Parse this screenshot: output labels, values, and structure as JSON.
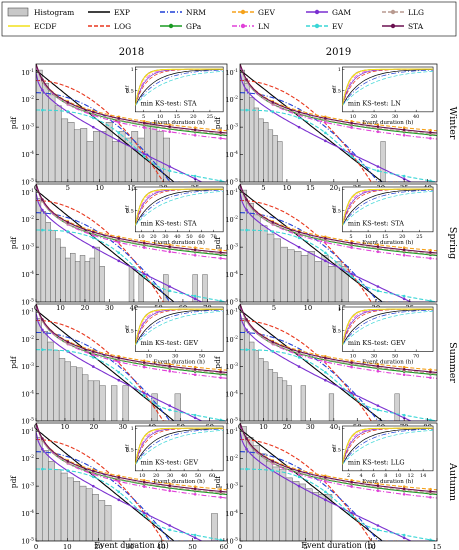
{
  "legend": {
    "entries": [
      {
        "label": "Histogram",
        "color": "#c8c8c8",
        "style": "bar"
      },
      {
        "label": "ECDF",
        "color": "#f2e01a",
        "style": "solid"
      },
      {
        "label": "EXP",
        "color": "#000000",
        "style": "solid"
      },
      {
        "label": "LOG",
        "color": "#e8371e",
        "style": "dashed"
      },
      {
        "label": "NRM",
        "color": "#1f3fd6",
        "style": "dashdot"
      },
      {
        "label": "GPa",
        "color": "#1a9a22",
        "style": "marker"
      },
      {
        "label": "GEV",
        "color": "#f5a21b",
        "style": "dashed-marker"
      },
      {
        "label": "LN",
        "color": "#e040d8",
        "style": "dashdot-marker"
      },
      {
        "label": "GAM",
        "color": "#7a2fd0",
        "style": "solid-marker"
      },
      {
        "label": "EV",
        "color": "#3ad6d6",
        "style": "dashed-marker"
      },
      {
        "label": "LLG",
        "color": "#b89a90",
        "style": "dashed-marker"
      },
      {
        "label": "STA",
        "color": "#6b1050",
        "style": "solid-marker"
      }
    ]
  },
  "columns": [
    "2018",
    "2019"
  ],
  "rows": [
    "Winter",
    "Spring",
    "Summer",
    "Autumn"
  ],
  "y_label": "pdf",
  "x_label": "Event duration (h)",
  "inset_y_label": "cdf",
  "inset_x_label": "Event duration (h)",
  "y_ticks": [
    "10^-1",
    "10^-2",
    "10^-3",
    "10^-4",
    "10^-5"
  ],
  "chart_data": [
    {
      "type": "line",
      "row": "Winter",
      "column": "2018",
      "x_max": 30,
      "x_ticks": [
        0,
        5,
        10,
        15,
        20,
        25
      ],
      "ylim": [
        1e-05,
        0.2
      ],
      "y_scale": "log",
      "ks_label": "min KS-test: STA",
      "inset_x_ticks": [
        5,
        10,
        15,
        20,
        25
      ],
      "histogram": [
        [
          0,
          1,
          0.12
        ],
        [
          1,
          2,
          0.04
        ],
        [
          2,
          3,
          0.015
        ],
        [
          3,
          4,
          0.006
        ],
        [
          4,
          5,
          0.002
        ],
        [
          5,
          6,
          0.0015
        ],
        [
          6,
          7,
          0.0008
        ],
        [
          7,
          8,
          0.0009
        ],
        [
          8,
          9,
          0.0003
        ],
        [
          9,
          10,
          0.0007
        ],
        [
          10,
          11,
          0.0007
        ],
        [
          11,
          12,
          0.0015
        ],
        [
          12,
          13,
          0.0003
        ],
        [
          13,
          14,
          0.0007
        ],
        [
          14,
          15,
          0.0004
        ],
        [
          15,
          16,
          0.0007
        ],
        [
          16,
          17,
          0.0004
        ],
        [
          17,
          18,
          0.0015
        ],
        [
          18,
          19,
          0.0015
        ],
        [
          19,
          20,
          0.0007
        ],
        [
          20,
          21,
          0.0004
        ]
      ]
    },
    {
      "type": "line",
      "row": "Winter",
      "column": "2019",
      "x_max": 42,
      "x_ticks": [
        0,
        5,
        10,
        15,
        20,
        25,
        30,
        35,
        40
      ],
      "ylim": [
        1e-05,
        0.2
      ],
      "y_scale": "log",
      "ks_label": "min KS-test: LN",
      "inset_x_ticks": [
        10,
        20,
        30,
        40
      ],
      "histogram": [
        [
          0,
          1,
          0.12
        ],
        [
          1,
          2,
          0.04
        ],
        [
          2,
          3,
          0.012
        ],
        [
          3,
          4,
          0.005
        ],
        [
          4,
          5,
          0.002
        ],
        [
          5,
          6,
          0.0015
        ],
        [
          6,
          7,
          0.0008
        ],
        [
          7,
          8,
          0.0005
        ],
        [
          8,
          9,
          0.0003
        ],
        [
          30,
          31,
          0.0003
        ]
      ]
    },
    {
      "type": "line",
      "row": "Spring",
      "column": "2018",
      "x_max": 78,
      "x_ticks": [
        0,
        10,
        20,
        30,
        40,
        50,
        60,
        70
      ],
      "ylim": [
        1e-05,
        0.2
      ],
      "y_scale": "log",
      "ks_label": "min KS-test: STA",
      "inset_x_ticks": [
        10,
        20,
        30,
        40,
        50,
        60,
        70
      ],
      "histogram": [
        [
          0,
          2,
          0.06
        ],
        [
          2,
          4,
          0.02
        ],
        [
          4,
          6,
          0.008
        ],
        [
          6,
          8,
          0.004
        ],
        [
          8,
          10,
          0.002
        ],
        [
          10,
          12,
          0.001
        ],
        [
          12,
          14,
          0.0004
        ],
        [
          14,
          16,
          0.0006
        ],
        [
          16,
          18,
          0.0003
        ],
        [
          18,
          20,
          0.0005
        ],
        [
          20,
          22,
          0.0003
        ],
        [
          22,
          24,
          0.0004
        ],
        [
          24,
          26,
          0.001
        ],
        [
          26,
          28,
          0.0002
        ],
        [
          38,
          40,
          0.0002
        ],
        [
          42,
          44,
          0.0001
        ],
        [
          52,
          54,
          0.0001
        ],
        [
          64,
          66,
          0.0001
        ],
        [
          68,
          70,
          0.0001
        ]
      ]
    },
    {
      "type": "line",
      "row": "Spring",
      "column": "2019",
      "x_max": 29,
      "x_ticks": [
        0,
        5,
        10,
        15,
        20,
        25
      ],
      "ylim": [
        1e-05,
        0.2
      ],
      "y_scale": "log",
      "ks_label": "min KS-test: STA",
      "inset_x_ticks": [
        5,
        10,
        15,
        20,
        25
      ],
      "histogram": [
        [
          0,
          1,
          0.12
        ],
        [
          1,
          2,
          0.04
        ],
        [
          2,
          3,
          0.015
        ],
        [
          3,
          4,
          0.006
        ],
        [
          4,
          5,
          0.003
        ],
        [
          5,
          6,
          0.002
        ],
        [
          6,
          7,
          0.001
        ],
        [
          7,
          8,
          0.0008
        ],
        [
          8,
          9,
          0.0007
        ],
        [
          9,
          10,
          0.0005
        ],
        [
          10,
          11,
          0.0007
        ],
        [
          11,
          12,
          0.0003
        ],
        [
          12,
          13,
          0.0005
        ],
        [
          13,
          14,
          0.0002
        ],
        [
          14,
          15,
          0.0003
        ],
        [
          15,
          16,
          0.0002
        ]
      ]
    },
    {
      "type": "line",
      "row": "Summer",
      "column": "2018",
      "x_max": 66,
      "x_ticks": [
        0,
        10,
        20,
        30,
        40,
        50,
        60
      ],
      "ylim": [
        1e-05,
        0.2
      ],
      "y_scale": "log",
      "ks_label": "min KS-test: GEV",
      "inset_x_ticks": [
        10,
        30,
        50
      ],
      "histogram": [
        [
          0,
          2,
          0.06
        ],
        [
          2,
          4,
          0.02
        ],
        [
          4,
          6,
          0.008
        ],
        [
          6,
          8,
          0.004
        ],
        [
          8,
          10,
          0.002
        ],
        [
          10,
          12,
          0.0015
        ],
        [
          12,
          14,
          0.001
        ],
        [
          14,
          16,
          0.0009
        ],
        [
          16,
          18,
          0.0005
        ],
        [
          18,
          20,
          0.0003
        ],
        [
          20,
          22,
          0.0003
        ],
        [
          22,
          24,
          0.0002
        ],
        [
          26,
          28,
          0.0002
        ],
        [
          30,
          32,
          0.0002
        ],
        [
          40,
          42,
          0.0001
        ],
        [
          48,
          50,
          0.0001
        ]
      ]
    },
    {
      "type": "line",
      "row": "Summer",
      "column": "2019",
      "x_max": 84,
      "x_ticks": [
        0,
        10,
        20,
        30,
        40,
        50,
        60,
        70,
        80
      ],
      "ylim": [
        1e-05,
        0.2
      ],
      "y_scale": "log",
      "ks_label": "min KS-test: GEV",
      "inset_x_ticks": [
        10,
        30,
        50,
        70
      ],
      "histogram": [
        [
          0,
          2,
          0.06
        ],
        [
          2,
          4,
          0.02
        ],
        [
          4,
          6,
          0.008
        ],
        [
          6,
          8,
          0.004
        ],
        [
          8,
          10,
          0.002
        ],
        [
          10,
          12,
          0.0015
        ],
        [
          12,
          14,
          0.0008
        ],
        [
          14,
          16,
          0.0006
        ],
        [
          16,
          18,
          0.0004
        ],
        [
          18,
          20,
          0.0003
        ],
        [
          20,
          22,
          0.0002
        ],
        [
          26,
          28,
          0.0002
        ],
        [
          38,
          40,
          0.0001
        ],
        [
          66,
          68,
          0.0001
        ]
      ]
    },
    {
      "type": "line",
      "row": "Autumn",
      "column": "2018",
      "x_max": 61,
      "x_ticks": [
        0,
        10,
        20,
        30,
        40,
        50,
        60
      ],
      "ylim": [
        1e-05,
        0.2
      ],
      "y_scale": "log",
      "ks_label": "min KS-test: GEV",
      "inset_x_ticks": [
        10,
        20,
        30,
        40,
        50,
        60
      ],
      "histogram": [
        [
          0,
          2,
          0.06
        ],
        [
          2,
          4,
          0.02
        ],
        [
          4,
          6,
          0.008
        ],
        [
          6,
          8,
          0.004
        ],
        [
          8,
          10,
          0.003
        ],
        [
          10,
          12,
          0.002
        ],
        [
          12,
          14,
          0.0015
        ],
        [
          14,
          16,
          0.001
        ],
        [
          16,
          18,
          0.0008
        ],
        [
          18,
          20,
          0.0005
        ],
        [
          20,
          22,
          0.0003
        ],
        [
          22,
          24,
          0.0002
        ],
        [
          56,
          58,
          0.0001
        ]
      ]
    },
    {
      "type": "line",
      "row": "Autumn",
      "column": "2019",
      "x_max": 15,
      "x_ticks": [
        0,
        5,
        10,
        15
      ],
      "ylim": [
        1e-05,
        0.2
      ],
      "y_scale": "log",
      "ks_label": "min KS-test: LLG",
      "inset_x_ticks": [
        2,
        4,
        6,
        8,
        10,
        12,
        14
      ],
      "histogram": [
        [
          0,
          0.5,
          0.15
        ],
        [
          0.5,
          1,
          0.06
        ],
        [
          1,
          1.5,
          0.03
        ],
        [
          1.5,
          2,
          0.015
        ],
        [
          2,
          2.5,
          0.008
        ],
        [
          2.5,
          3,
          0.005
        ],
        [
          3,
          3.5,
          0.004
        ],
        [
          3.5,
          4,
          0.002
        ],
        [
          4,
          4.5,
          0.0015
        ],
        [
          4.5,
          5,
          0.0012
        ],
        [
          5,
          5.5,
          0.0008
        ],
        [
          5.5,
          6,
          0.0006
        ],
        [
          6,
          6.5,
          0.0005
        ],
        [
          6.5,
          7,
          0.0005
        ]
      ]
    }
  ]
}
